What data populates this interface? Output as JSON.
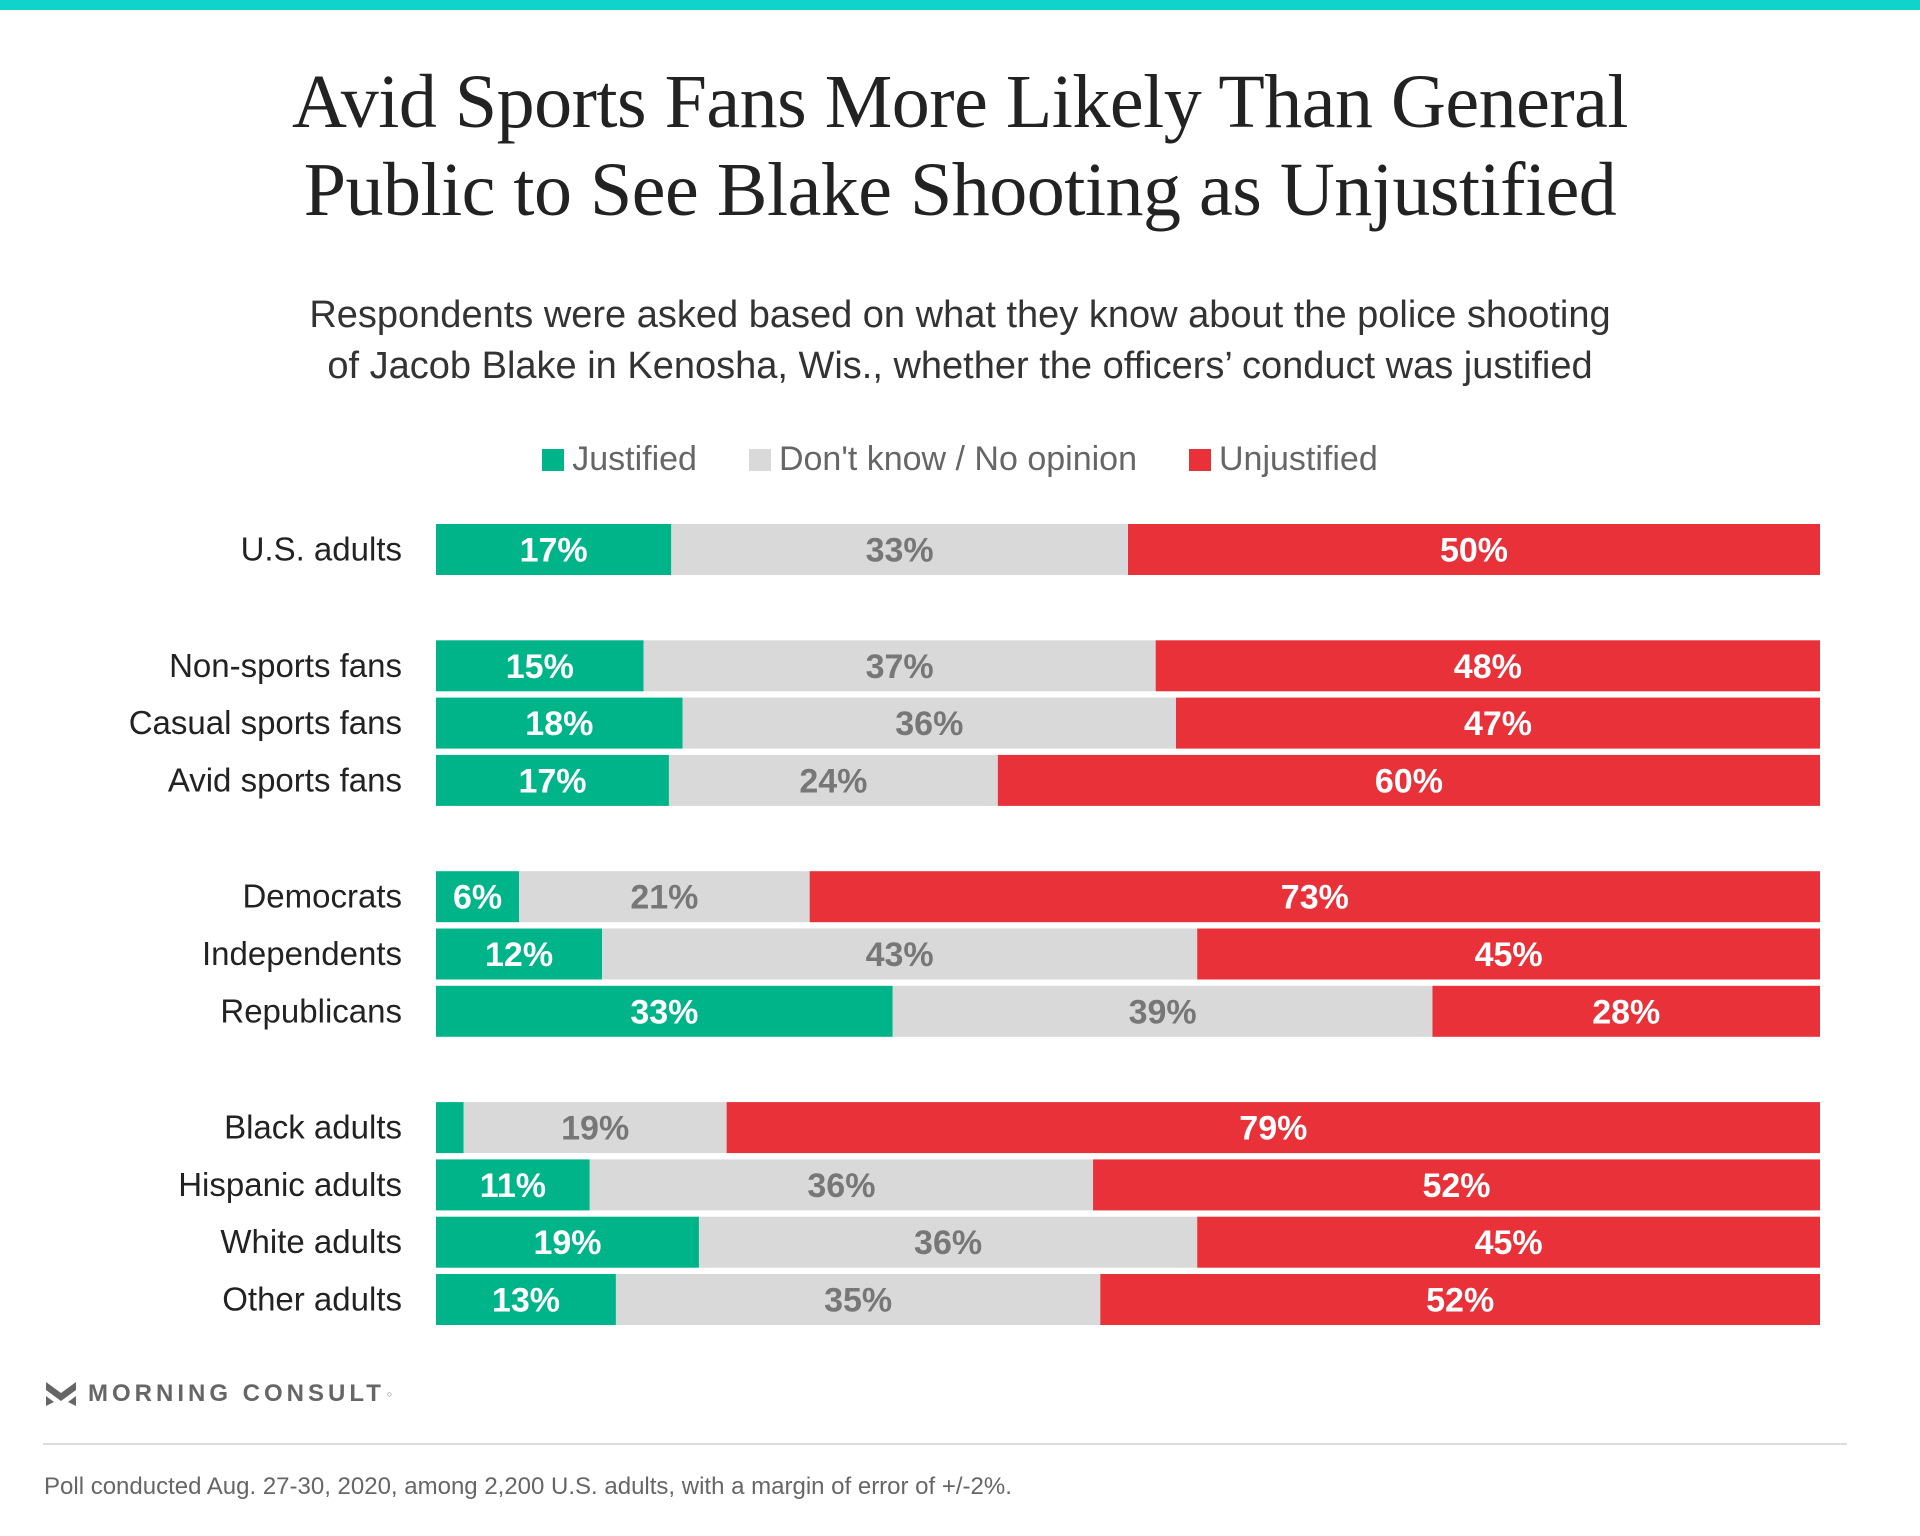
{
  "header": {
    "title_lines": [
      "Avid Sports Fans More Likely Than General",
      "Public to See Blake Shooting as Unjustified"
    ],
    "subtitle_lines": [
      "Respondents were asked based on what they know about the police shooting",
      "of Jacob Blake in Kenosha, Wis., whether the officers’ conduct was justified"
    ]
  },
  "colors": {
    "accent_bar": "#10d4cc",
    "justified": "#00b48a",
    "dont_know": "#d9d9d9",
    "unjustified": "#e83138",
    "label_light": "#ffffff",
    "label_dark": "#777777"
  },
  "chart_data": {
    "type": "bar",
    "orientation": "horizontal",
    "stacked": true,
    "title": "Avid Sports Fans More Likely Than General Public to See Blake Shooting as Unjustified",
    "subtitle": "Respondents were asked based on what they know about the police shooting of Jacob Blake in Kenosha, Wis., whether the officers’ conduct was justified",
    "xlabel": "",
    "ylabel": "",
    "xlim": [
      0,
      100
    ],
    "grid": false,
    "legend_position": "top-center",
    "legend": [
      "Justified",
      "Don't know / No opinion",
      "Unjustified"
    ],
    "groups": [
      [
        "U.S. adults"
      ],
      [
        "Non-sports fans",
        "Casual sports fans",
        "Avid sports fans"
      ],
      [
        "Democrats",
        "Independents",
        "Republicans"
      ],
      [
        "Black adults",
        "Hispanic adults",
        "White adults",
        "Other adults"
      ]
    ],
    "categories": [
      "U.S. adults",
      "Non-sports fans",
      "Casual sports fans",
      "Avid sports fans",
      "Democrats",
      "Independents",
      "Republicans",
      "Black adults",
      "Hispanic adults",
      "White adults",
      "Other adults"
    ],
    "series": [
      {
        "name": "Justified",
        "values": [
          17,
          15,
          18,
          17,
          6,
          12,
          33,
          2,
          11,
          19,
          13
        ],
        "labels": [
          "17%",
          "15%",
          "18%",
          "17%",
          "6%",
          "12%",
          "33%",
          "",
          "11%",
          "19%",
          "13%"
        ]
      },
      {
        "name": "Don't know / No opinion",
        "values": [
          33,
          37,
          36,
          24,
          21,
          43,
          39,
          19,
          36,
          36,
          35
        ],
        "labels": [
          "33%",
          "37%",
          "36%",
          "24%",
          "21%",
          "43%",
          "39%",
          "19%",
          "36%",
          "36%",
          "35%"
        ]
      },
      {
        "name": "Unjustified",
        "values": [
          50,
          48,
          47,
          60,
          73,
          45,
          28,
          79,
          52,
          45,
          52
        ],
        "labels": [
          "50%",
          "48%",
          "47%",
          "60%",
          "73%",
          "45%",
          "28%",
          "79%",
          "52%",
          "45%",
          "52%"
        ]
      }
    ]
  },
  "branding": {
    "logo_text": "MORNING CONSULT",
    "logo_mark": "registered"
  },
  "footer": {
    "note": "Poll conducted Aug. 27-30, 2020, among 2,200 U.S. adults, with a margin of error of +/-2%."
  }
}
